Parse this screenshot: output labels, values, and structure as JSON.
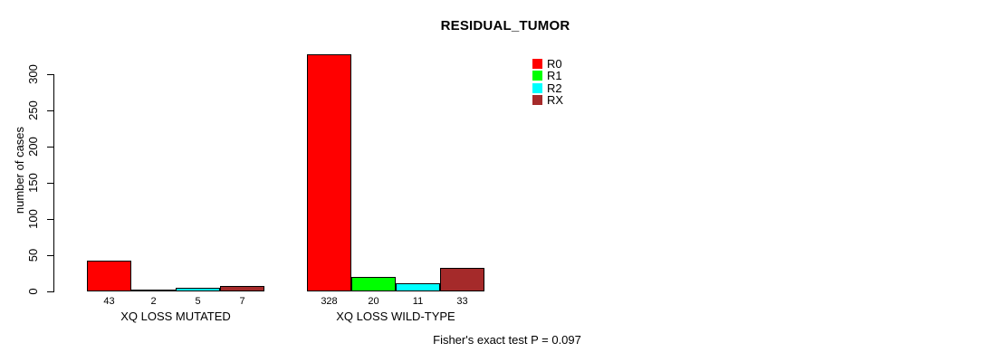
{
  "chart_data": {
    "type": "bar",
    "title": "RESIDUAL_TUMOR",
    "xlabel": "",
    "ylabel": "number of cases",
    "ylim": [
      0,
      330
    ],
    "yticks": [
      0,
      50,
      100,
      150,
      200,
      250,
      300
    ],
    "grid": false,
    "legend_position": "top-right",
    "bar_value_labels": true,
    "categories": [
      "XQ LOSS MUTATED",
      "XQ LOSS WILD-TYPE"
    ],
    "series": [
      {
        "name": "R0",
        "color": "#ff0000",
        "values": [
          43,
          328
        ]
      },
      {
        "name": "R1",
        "color": "#00ff00",
        "values": [
          2,
          20
        ]
      },
      {
        "name": "R2",
        "color": "#00ffff",
        "values": [
          5,
          11
        ]
      },
      {
        "name": "RX",
        "color": "#a52a2a",
        "values": [
          7,
          33
        ]
      }
    ],
    "annotation": "Fisher's exact test P = 0.097"
  }
}
